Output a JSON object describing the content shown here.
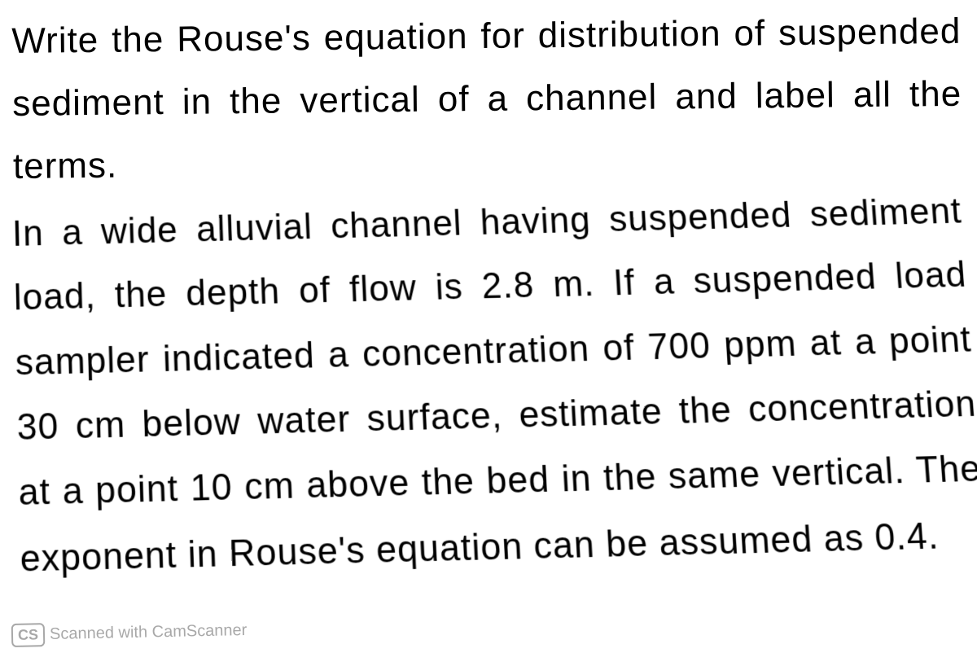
{
  "document": {
    "paragraph1": "Write the Rouse's equation for distribution of suspended sediment in the vertical of a channel and label all the terms.",
    "paragraph2": "In a wide alluvial channel having suspended sediment load, the depth of flow is 2.8 m. If a suspended load sampler indicated a concentration of 700 ppm at a point 30 cm below water surface, estimate the concentration at a point 10 cm above the bed in the same vertical. The exponent in Rouse's equation can be assumed as 0.4.",
    "font_family": "Trebuchet MS",
    "font_size_pt": 44,
    "text_color": "#000000",
    "background_color": "#ffffff"
  },
  "watermark": {
    "badge": "CS",
    "text": "Scanned with CamScanner"
  }
}
